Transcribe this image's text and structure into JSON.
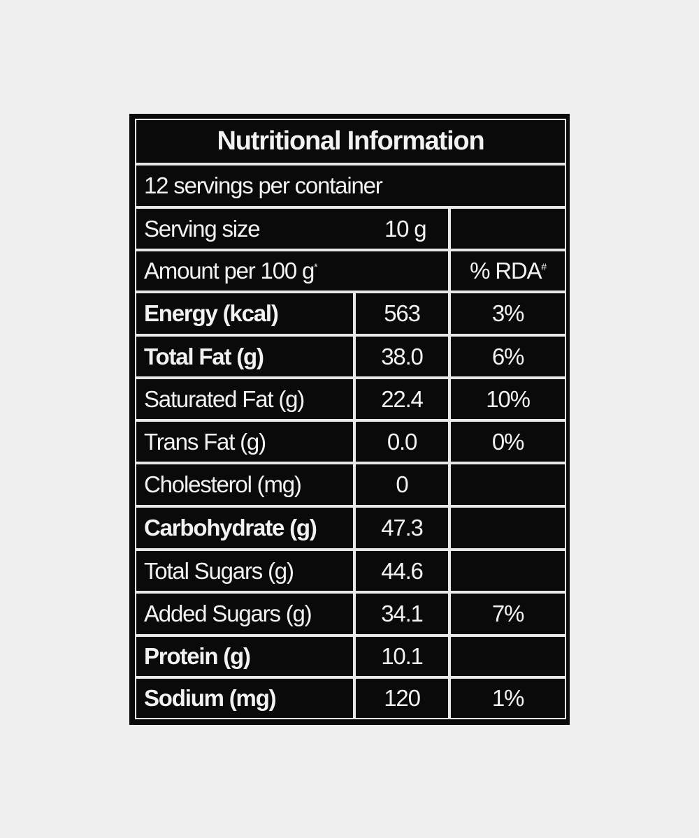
{
  "title": "Nutritional Information",
  "servings": "12 servings per container",
  "serving_size": {
    "label": "Serving size",
    "value": "10 g"
  },
  "amount_header": {
    "label": "Amount per 100 g",
    "label_mark": "*",
    "rda": "% RDA",
    "rda_mark": "#"
  },
  "rows": [
    {
      "label": "Energy (kcal)",
      "amount": "563",
      "rda": "3%",
      "bold": true
    },
    {
      "label": "Total Fat (g)",
      "amount": "38.0",
      "rda": "6%",
      "bold": true
    },
    {
      "label": "Saturated Fat (g)",
      "amount": "22.4",
      "rda": "10%",
      "bold": false
    },
    {
      "label": "Trans Fat (g)",
      "amount": "0.0",
      "rda": "0%",
      "bold": false
    },
    {
      "label": "Cholesterol (mg)",
      "amount": "0",
      "bold": false
    },
    {
      "label": "Carbohydrate (g)",
      "amount": "47.3",
      "bold": true
    },
    {
      "label": "Total Sugars (g)",
      "amount": "44.6",
      "bold": false
    },
    {
      "label": "Added Sugars (g)",
      "amount": "34.1",
      "rda": "7%",
      "bold": false
    },
    {
      "label": "Protein (g)",
      "amount": "10.1",
      "bold": true
    },
    {
      "label": "Sodium (mg)",
      "amount": "120",
      "rda": "1%",
      "bold": true
    }
  ]
}
